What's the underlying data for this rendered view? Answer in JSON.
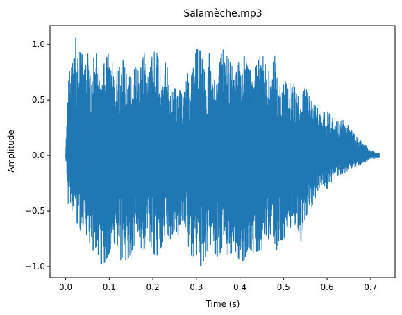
{
  "chart_data": {
    "type": "line",
    "title": "Salamèche.mp3",
    "xlabel": "Time (s)",
    "ylabel": "Amplitude",
    "xlim": [
      -0.036,
      0.756
    ],
    "ylim": [
      -1.1,
      1.17
    ],
    "grid": false,
    "legend": "none",
    "x_ticks": [
      0.0,
      0.1,
      0.2,
      0.3,
      0.4,
      0.5,
      0.6,
      0.7
    ],
    "x_tick_labels": [
      "0.0",
      "0.1",
      "0.2",
      "0.3",
      "0.4",
      "0.5",
      "0.6",
      "0.7"
    ],
    "y_ticks": [
      -1.0,
      -0.5,
      0.0,
      0.5,
      1.0
    ],
    "y_tick_labels": [
      "−1.0",
      "−0.5",
      "0.0",
      "0.5",
      "1.0"
    ],
    "series": [
      {
        "color": "#1f77b4",
        "x_start": 0.0,
        "x_end": 0.72,
        "envelope": {
          "t": [
            0.0,
            0.002,
            0.006,
            0.01,
            0.014,
            0.018,
            0.022,
            0.03,
            0.04,
            0.05,
            0.06,
            0.07,
            0.08,
            0.09,
            0.1,
            0.11,
            0.12,
            0.13,
            0.14,
            0.15,
            0.16,
            0.17,
            0.18,
            0.19,
            0.2,
            0.21,
            0.22,
            0.23,
            0.24,
            0.25,
            0.26,
            0.27,
            0.28,
            0.29,
            0.3,
            0.31,
            0.32,
            0.33,
            0.34,
            0.35,
            0.36,
            0.37,
            0.38,
            0.39,
            0.4,
            0.41,
            0.42,
            0.43,
            0.44,
            0.45,
            0.46,
            0.47,
            0.48,
            0.49,
            0.5,
            0.51,
            0.52,
            0.53,
            0.54,
            0.55,
            0.56,
            0.57,
            0.58,
            0.59,
            0.6,
            0.62,
            0.64,
            0.66,
            0.68,
            0.7,
            0.72
          ],
          "max": [
            0.02,
            0.3,
            0.62,
            0.95,
            0.75,
            0.95,
            1.07,
            0.94,
            0.9,
            0.92,
            0.85,
            0.92,
            0.72,
            0.85,
            0.93,
            0.8,
            0.75,
            0.88,
            0.72,
            0.7,
            0.8,
            0.74,
            0.93,
            0.68,
            0.94,
            0.92,
            0.74,
            0.84,
            0.7,
            0.6,
            0.6,
            0.52,
            0.74,
            0.72,
            0.96,
            0.94,
            0.72,
            0.93,
            0.66,
            0.76,
            0.96,
            0.9,
            0.82,
            0.72,
            0.88,
            0.9,
            0.76,
            0.78,
            0.82,
            0.94,
            0.8,
            0.74,
            0.9,
            0.6,
            0.72,
            0.6,
            0.7,
            0.55,
            0.5,
            0.62,
            0.52,
            0.45,
            0.42,
            0.38,
            0.4,
            0.3,
            0.32,
            0.2,
            0.12,
            0.05,
            0.02
          ],
          "min": [
            -0.02,
            -0.1,
            -0.46,
            -0.5,
            -0.55,
            -0.55,
            -0.6,
            -0.62,
            -0.75,
            -0.7,
            -0.87,
            -0.82,
            -0.98,
            -0.96,
            -0.88,
            -0.75,
            -0.98,
            -0.92,
            -0.95,
            -0.88,
            -0.78,
            -0.83,
            -0.85,
            -0.72,
            -0.88,
            -0.9,
            -0.82,
            -0.68,
            -0.75,
            -0.66,
            -0.72,
            -0.65,
            -0.8,
            -0.92,
            -0.88,
            -1.0,
            -0.92,
            -0.78,
            -0.86,
            -0.92,
            -0.82,
            -0.9,
            -0.88,
            -0.86,
            -0.96,
            -0.94,
            -0.82,
            -0.88,
            -0.86,
            -0.85,
            -0.82,
            -0.7,
            -0.92,
            -0.76,
            -0.76,
            -0.62,
            -0.66,
            -0.6,
            -0.78,
            -0.55,
            -0.5,
            -0.42,
            -0.3,
            -0.25,
            -0.3,
            -0.18,
            -0.16,
            -0.1,
            -0.08,
            -0.03,
            -0.02
          ]
        }
      }
    ]
  }
}
